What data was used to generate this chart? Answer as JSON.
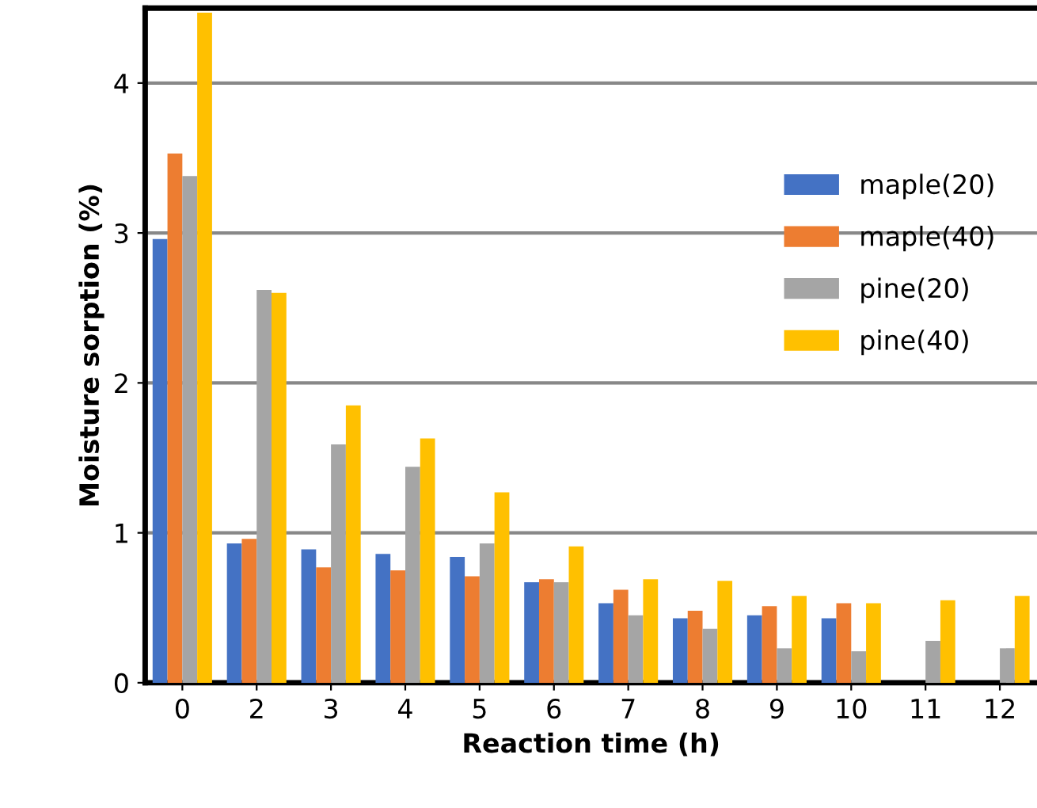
{
  "chart_data": {
    "type": "bar",
    "xlabel": "Reaction time (h)",
    "ylabel": "Moisture sorption (%)",
    "categories": [
      "0",
      "2",
      "3",
      "4",
      "5",
      "6",
      "7",
      "8",
      "9",
      "10",
      "11",
      "12"
    ],
    "series": [
      {
        "name": "maple(20)",
        "color": "#4472c4",
        "values": [
          2.96,
          0.93,
          0.89,
          0.86,
          0.84,
          0.67,
          0.53,
          0.43,
          0.45,
          0.43,
          null,
          null
        ]
      },
      {
        "name": "maple(40)",
        "color": "#ed7d31",
        "values": [
          3.53,
          0.96,
          0.77,
          0.75,
          0.71,
          0.69,
          0.62,
          0.48,
          0.51,
          0.53,
          null,
          null
        ]
      },
      {
        "name": "pine(20)",
        "color": "#a5a5a5",
        "values": [
          3.38,
          2.62,
          1.59,
          1.44,
          0.93,
          0.67,
          0.45,
          0.36,
          0.23,
          0.21,
          0.28,
          0.23
        ]
      },
      {
        "name": "pine(40)",
        "color": "#ffc000",
        "values": [
          4.47,
          2.6,
          1.85,
          1.63,
          1.27,
          0.91,
          0.69,
          0.68,
          0.58,
          0.53,
          0.55,
          0.58
        ]
      }
    ],
    "ylim": [
      0,
      4.5
    ],
    "yticks": [
      0,
      1,
      2,
      3,
      4
    ],
    "grid": "y",
    "legend": "right"
  }
}
